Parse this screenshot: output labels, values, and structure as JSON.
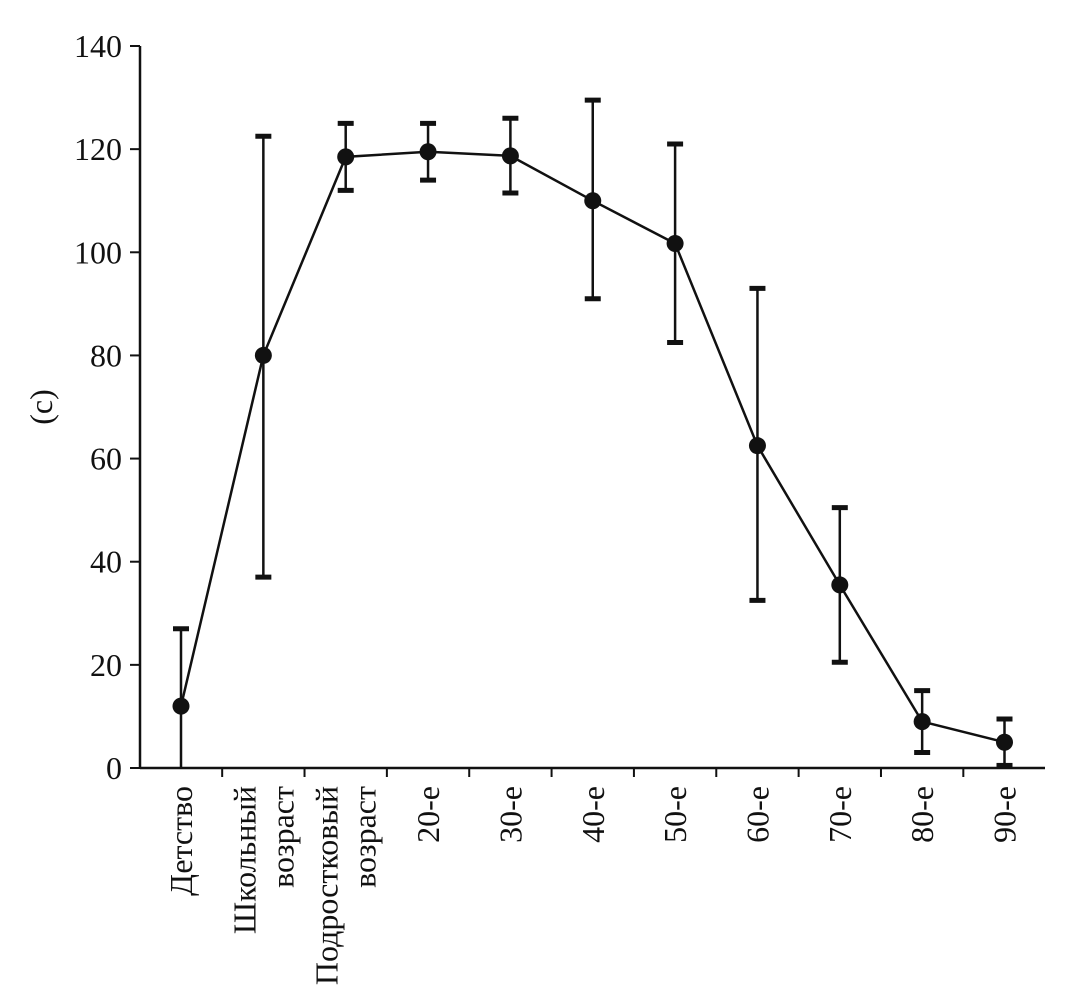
{
  "chart_data": {
    "type": "line",
    "title": "",
    "xlabel": "",
    "ylabel": "(с)",
    "ylim": [
      0,
      140
    ],
    "yticks": [
      0,
      20,
      40,
      60,
      80,
      100,
      120,
      140
    ],
    "grid": false,
    "categories": [
      [
        "Детство"
      ],
      [
        "Школьный",
        "возраст"
      ],
      [
        "Подростковый",
        "возраст"
      ],
      [
        "20-е"
      ],
      [
        "30-е"
      ],
      [
        "40-е"
      ],
      [
        "50-е"
      ],
      [
        "60-е"
      ],
      [
        "70-е"
      ],
      [
        "80-е"
      ],
      [
        "90-е"
      ]
    ],
    "series": [
      {
        "values": [
          12,
          80,
          118.5,
          119.5,
          118.7,
          110,
          101.7,
          62.5,
          35.5,
          9,
          5
        ],
        "error_high": [
          27,
          122.5,
          125,
          125,
          126,
          129.5,
          121,
          93,
          50.5,
          15,
          9.5
        ],
        "error_low": [
          0,
          37,
          112,
          114,
          111.5,
          91,
          82.5,
          32.5,
          20.5,
          3,
          0.5
        ]
      }
    ]
  }
}
